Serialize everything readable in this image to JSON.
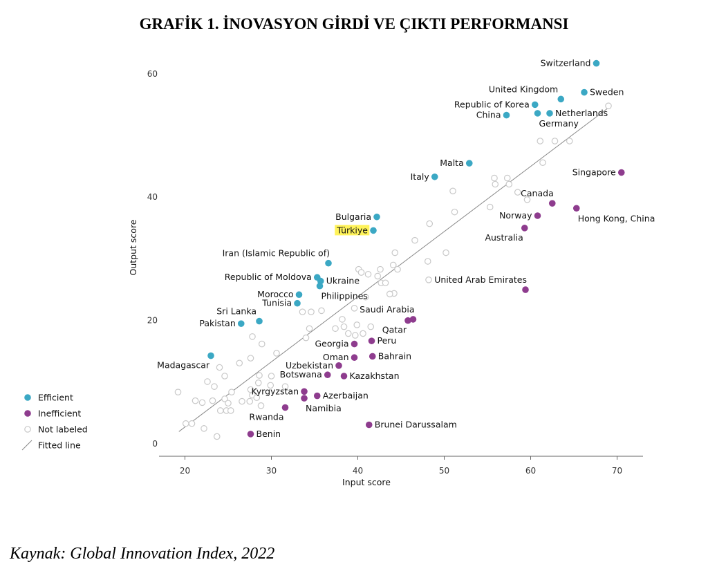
{
  "title": "GRAFİK 1. İNOVASYON GİRDİ VE ÇIKTI PERFORMANSI",
  "source": "Kaynak: Global Innovation Index, 2022",
  "chart_data": {
    "type": "scatter",
    "xlabel": "Input score",
    "ylabel": "Output score",
    "xlim": [
      17,
      73
    ],
    "ylim": [
      -2,
      63
    ],
    "xticks": [
      20,
      30,
      40,
      50,
      60,
      70
    ],
    "yticks": [
      0,
      20,
      40,
      60
    ],
    "grid": false,
    "colors": {
      "efficient": "#3ba8c4",
      "inefficient": "#8e3c8e",
      "unlabeled": "#c8c8c8",
      "highlight": "#fff35a",
      "fitted": "#888888"
    },
    "legend": {
      "position": "left",
      "items": [
        {
          "key": "efficient",
          "label": "Efficient"
        },
        {
          "key": "inefficient",
          "label": "Inefficient"
        },
        {
          "key": "unlabeled",
          "label": "Not labeled"
        },
        {
          "key": "fitted",
          "label": "Fitted line"
        }
      ]
    },
    "fitted_line": [
      [
        19.3,
        2
      ],
      [
        69,
        54.5
      ]
    ],
    "efficient": [
      {
        "label": "Switzerland",
        "x": 67.6,
        "y": 61.7,
        "pos": "left"
      },
      {
        "label": "Sweden",
        "x": 66.2,
        "y": 57.0,
        "pos": "right"
      },
      {
        "label": "United Kingdom",
        "x": 63.5,
        "y": 55.9,
        "pos": "above-left"
      },
      {
        "label": "Republic of Korea",
        "x": 60.5,
        "y": 55.0,
        "pos": "left"
      },
      {
        "label": "Netherlands",
        "x": 62.2,
        "y": 53.6,
        "pos": "right"
      },
      {
        "label": "China",
        "x": 57.2,
        "y": 53.3,
        "pos": "left"
      },
      {
        "label": "Germany",
        "x": 60.8,
        "y": 53.6,
        "pos": "below-right"
      },
      {
        "label": "Malta",
        "x": 52.9,
        "y": 45.5,
        "pos": "left"
      },
      {
        "label": "Italy",
        "x": 48.9,
        "y": 43.3,
        "pos": "left"
      },
      {
        "label": "Bulgaria",
        "x": 42.2,
        "y": 36.8,
        "pos": "left"
      },
      {
        "label": "Türkiye",
        "x": 41.8,
        "y": 34.6,
        "pos": "left",
        "highlight": true
      },
      {
        "label": "Iran (Islamic Republic of)",
        "x": 36.6,
        "y": 29.3,
        "pos": "above-right"
      },
      {
        "label": "Republic of Moldova",
        "x": 35.3,
        "y": 27.0,
        "pos": "left"
      },
      {
        "label": "Ukraine",
        "x": 35.7,
        "y": 26.4,
        "pos": "right"
      },
      {
        "label": "Philippines",
        "x": 35.6,
        "y": 25.6,
        "pos": "below-right"
      },
      {
        "label": "Morocco",
        "x": 33.2,
        "y": 24.2,
        "pos": "left"
      },
      {
        "label": "Tunisia",
        "x": 33.0,
        "y": 22.8,
        "pos": "left"
      },
      {
        "label": "Sri Lanka",
        "x": 28.6,
        "y": 19.9,
        "pos": "above-left"
      },
      {
        "label": "Pakistan",
        "x": 26.5,
        "y": 19.5,
        "pos": "left"
      },
      {
        "label": "Madagascar",
        "x": 23.0,
        "y": 14.3,
        "pos": "below-left"
      }
    ],
    "inefficient": [
      {
        "label": "Singapore",
        "x": 70.5,
        "y": 44.0,
        "pos": "left"
      },
      {
        "label": "Canada",
        "x": 62.5,
        "y": 39.0,
        "pos": "above-right"
      },
      {
        "label": "Hong Kong, China",
        "x": 65.3,
        "y": 38.2,
        "pos": "below-right"
      },
      {
        "label": "Norway",
        "x": 60.8,
        "y": 37.0,
        "pos": "left"
      },
      {
        "label": "Australia",
        "x": 59.3,
        "y": 35.0,
        "pos": "below-left"
      },
      {
        "label": "United Arab Emirates",
        "x": 59.4,
        "y": 25.0,
        "pos": "above-right"
      },
      {
        "label": "Saudi Arabia",
        "x": 46.4,
        "y": 20.2,
        "pos": "above-right"
      },
      {
        "label": "Qatar",
        "x": 45.8,
        "y": 20.0,
        "pos": "below-left"
      },
      {
        "label": "Peru",
        "x": 41.6,
        "y": 16.7,
        "pos": "right"
      },
      {
        "label": "Georgia",
        "x": 39.6,
        "y": 16.2,
        "pos": "left"
      },
      {
        "label": "Bahrain",
        "x": 41.7,
        "y": 14.2,
        "pos": "right"
      },
      {
        "label": "Oman",
        "x": 39.6,
        "y": 14.0,
        "pos": "left"
      },
      {
        "label": "Uzbekistan",
        "x": 37.8,
        "y": 12.7,
        "pos": "left"
      },
      {
        "label": "Botswana",
        "x": 36.5,
        "y": 11.2,
        "pos": "left"
      },
      {
        "label": "Kazakhstan",
        "x": 38.4,
        "y": 11.0,
        "pos": "right"
      },
      {
        "label": "Kyrgyzstan",
        "x": 33.8,
        "y": 8.5,
        "pos": "left"
      },
      {
        "label": "Azerbaijan",
        "x": 35.3,
        "y": 7.8,
        "pos": "right"
      },
      {
        "label": "Namibia",
        "x": 33.8,
        "y": 7.4,
        "pos": "below-right"
      },
      {
        "label": "Rwanda",
        "x": 31.6,
        "y": 5.9,
        "pos": "below-left"
      },
      {
        "label": "Brunei Darussalam",
        "x": 41.3,
        "y": 3.1,
        "pos": "right"
      },
      {
        "label": "Benin",
        "x": 27.6,
        "y": 1.6,
        "pos": "right"
      }
    ],
    "unlabeled": [
      [
        69.0,
        54.8
      ],
      [
        61.1,
        49.1
      ],
      [
        62.8,
        49.1
      ],
      [
        64.5,
        49.1
      ],
      [
        61.4,
        45.6
      ],
      [
        55.8,
        43.1
      ],
      [
        57.3,
        43.1
      ],
      [
        55.9,
        42.1
      ],
      [
        57.5,
        42.1
      ],
      [
        51.0,
        41.0
      ],
      [
        58.5,
        40.8
      ],
      [
        59.6,
        39.6
      ],
      [
        55.3,
        38.4
      ],
      [
        51.2,
        37.6
      ],
      [
        48.3,
        35.7
      ],
      [
        46.6,
        33.0
      ],
      [
        50.2,
        31.0
      ],
      [
        44.3,
        31.0
      ],
      [
        48.1,
        29.6
      ],
      [
        44.1,
        29.0
      ],
      [
        44.6,
        28.3
      ],
      [
        42.6,
        28.3
      ],
      [
        40.1,
        28.3
      ],
      [
        40.4,
        27.8
      ],
      [
        41.2,
        27.5
      ],
      [
        42.3,
        27.2
      ],
      [
        48.2,
        26.6
      ],
      [
        42.7,
        26.1
      ],
      [
        43.2,
        26.1
      ],
      [
        44.2,
        24.4
      ],
      [
        43.7,
        24.3
      ],
      [
        40.9,
        23.8
      ],
      [
        39.6,
        22.0
      ],
      [
        35.8,
        21.6
      ],
      [
        34.6,
        21.4
      ],
      [
        33.6,
        21.4
      ],
      [
        38.2,
        20.2
      ],
      [
        39.9,
        19.3
      ],
      [
        38.4,
        19.0
      ],
      [
        41.5,
        19.0
      ],
      [
        34.4,
        18.7
      ],
      [
        37.4,
        18.7
      ],
      [
        38.9,
        17.9
      ],
      [
        40.6,
        17.9
      ],
      [
        39.7,
        17.6
      ],
      [
        27.8,
        17.4
      ],
      [
        34.0,
        17.2
      ],
      [
        28.9,
        16.2
      ],
      [
        30.6,
        14.7
      ],
      [
        27.6,
        13.9
      ],
      [
        26.3,
        13.1
      ],
      [
        24.0,
        12.4
      ],
      [
        28.6,
        11.1
      ],
      [
        30.0,
        11.0
      ],
      [
        24.6,
        11.0
      ],
      [
        28.5,
        9.9
      ],
      [
        22.6,
        10.1
      ],
      [
        23.4,
        9.3
      ],
      [
        25.4,
        8.4
      ],
      [
        29.9,
        9.5
      ],
      [
        31.6,
        9.3
      ],
      [
        27.6,
        8.8
      ],
      [
        19.2,
        8.4
      ],
      [
        27.8,
        7.9
      ],
      [
        28.3,
        7.5
      ],
      [
        26.6,
        6.9
      ],
      [
        24.6,
        7.3
      ],
      [
        21.2,
        7.0
      ],
      [
        22.0,
        6.7
      ],
      [
        23.2,
        7.0
      ],
      [
        25.0,
        6.6
      ],
      [
        27.5,
        6.9
      ],
      [
        28.8,
        6.2
      ],
      [
        24.1,
        5.4
      ],
      [
        24.8,
        5.4
      ],
      [
        25.3,
        5.4
      ],
      [
        20.1,
        3.3
      ],
      [
        20.8,
        3.3
      ],
      [
        22.2,
        2.5
      ],
      [
        23.7,
        1.2
      ]
    ]
  }
}
